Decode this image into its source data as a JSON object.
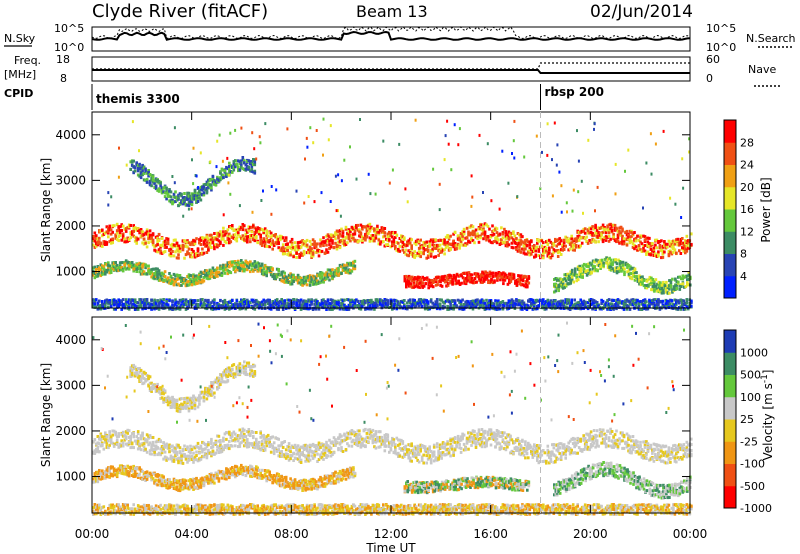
{
  "header": {
    "station": "Clyde River (fitACF)",
    "beam": "Beam 13",
    "date": "02/Jun/2014"
  },
  "noise_panel": {
    "left_label": "N.Sky",
    "right_label": "N.Search",
    "left_ticks": [
      "10^5",
      "10^0"
    ],
    "right_ticks": [
      "10^5",
      "10^0"
    ]
  },
  "freq_panel": {
    "left_label": "Freq.",
    "left_unit": "[MHz]",
    "right_label": "Nave",
    "left_ticks": [
      "18",
      "8"
    ],
    "right_ticks": [
      "60",
      "0"
    ],
    "cpid_label": "CPID",
    "cpid_segments": [
      {
        "name": "themis 3300",
        "start_hour": 0
      },
      {
        "name": "rbsp 200",
        "start_hour": 18
      }
    ]
  },
  "chart_data": [
    {
      "type": "heatmap",
      "name": "power",
      "ylabel": "Slant Range [km]",
      "xlabel": "Time UT",
      "ylim": [
        200,
        4500
      ],
      "yticks": [
        "1000",
        "2000",
        "3000",
        "4000"
      ],
      "xticks": [
        "00:00",
        "04:00",
        "08:00",
        "12:00",
        "16:00",
        "20:00",
        "00:00"
      ],
      "xlim_hours": [
        0,
        24
      ],
      "colorbar": {
        "label": "Power [dB]",
        "tick_labels": [
          "4",
          "8",
          "12",
          "16",
          "20",
          "24",
          "28"
        ],
        "colors": [
          "#0020ff",
          "#2844b4",
          "#3c8c64",
          "#64c83c",
          "#e6e628",
          "#f0a014",
          "#f05014",
          "#ff0000"
        ]
      }
    },
    {
      "type": "heatmap",
      "name": "velocity",
      "ylabel": "Slant Range [km]",
      "xlabel": "Time UT",
      "ylim": [
        200,
        4500
      ],
      "yticks": [
        "1000",
        "2000",
        "3000",
        "4000"
      ],
      "xticks": [
        "00:00",
        "04:00",
        "08:00",
        "12:00",
        "16:00",
        "20:00",
        "00:00"
      ],
      "xlim_hours": [
        0,
        24
      ],
      "colorbar": {
        "label": "Velocity [m s^-1]",
        "tick_labels": [
          "1000",
          "500",
          "100",
          "25",
          "-25",
          "-100",
          "-500",
          "-1000"
        ],
        "colors": [
          "#1e3cb4",
          "#3c8c64",
          "#64c83c",
          "#c8c8c8",
          "#e6c81e",
          "#f09614",
          "#f05014",
          "#ff0000"
        ]
      }
    }
  ]
}
